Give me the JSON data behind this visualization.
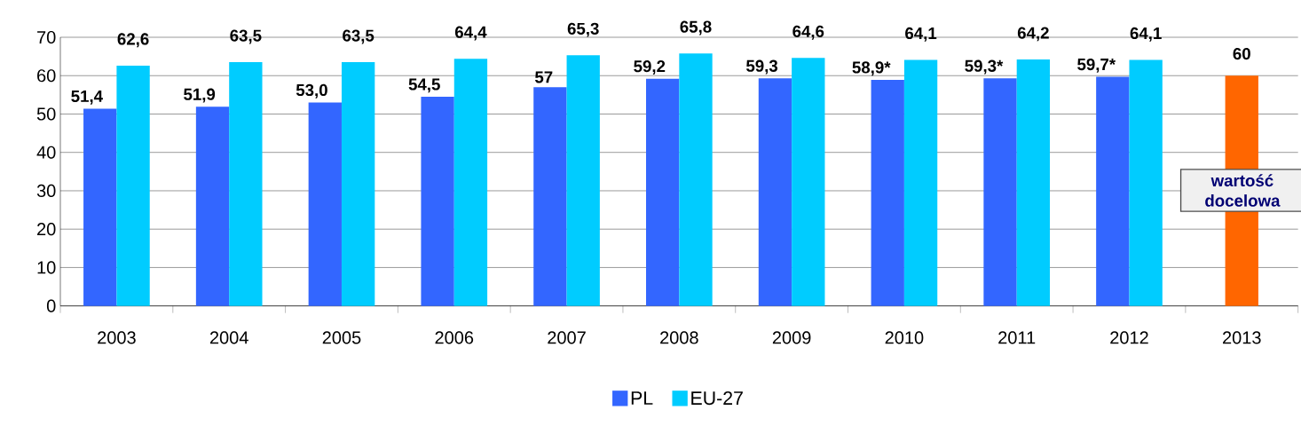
{
  "chart_data": {
    "type": "bar",
    "categories": [
      "2003",
      "2004",
      "2005",
      "2006",
      "2007",
      "2008",
      "2009",
      "2010",
      "2011",
      "2012",
      "2013"
    ],
    "series": [
      {
        "name": "PL",
        "color": "#3366ff",
        "values": [
          51.4,
          51.9,
          53.0,
          54.5,
          57,
          59.2,
          59.3,
          58.9,
          59.3,
          59.7,
          null
        ],
        "value_labels": [
          "51,4",
          "51,9",
          "53,0",
          "54,5",
          "57",
          "59,2",
          "59,3",
          "58,9*",
          "59,3*",
          "59,7*",
          null
        ]
      },
      {
        "name": "EU-27",
        "color": "#00ccff",
        "values": [
          62.6,
          63.5,
          63.5,
          64.4,
          65.3,
          65.8,
          64.6,
          64.1,
          64.2,
          64.1,
          null
        ],
        "value_labels": [
          "62,6",
          "63,5",
          "63,5",
          "64,4",
          "65,3",
          "65,8",
          "64,6",
          "64,1",
          "64,2",
          "64,1",
          null
        ]
      },
      {
        "color": "#ff6600",
        "values": [
          null,
          null,
          null,
          null,
          null,
          null,
          null,
          null,
          null,
          null,
          60
        ],
        "value_labels": [
          null,
          null,
          null,
          null,
          null,
          null,
          null,
          null,
          null,
          null,
          "60"
        ]
      }
    ],
    "annotations": [
      "wartość docelowa"
    ],
    "ylim": [
      0,
      70
    ],
    "yticks": [
      0,
      10,
      20,
      30,
      40,
      50,
      60,
      70
    ],
    "grid": "y",
    "legend": "bottom"
  }
}
